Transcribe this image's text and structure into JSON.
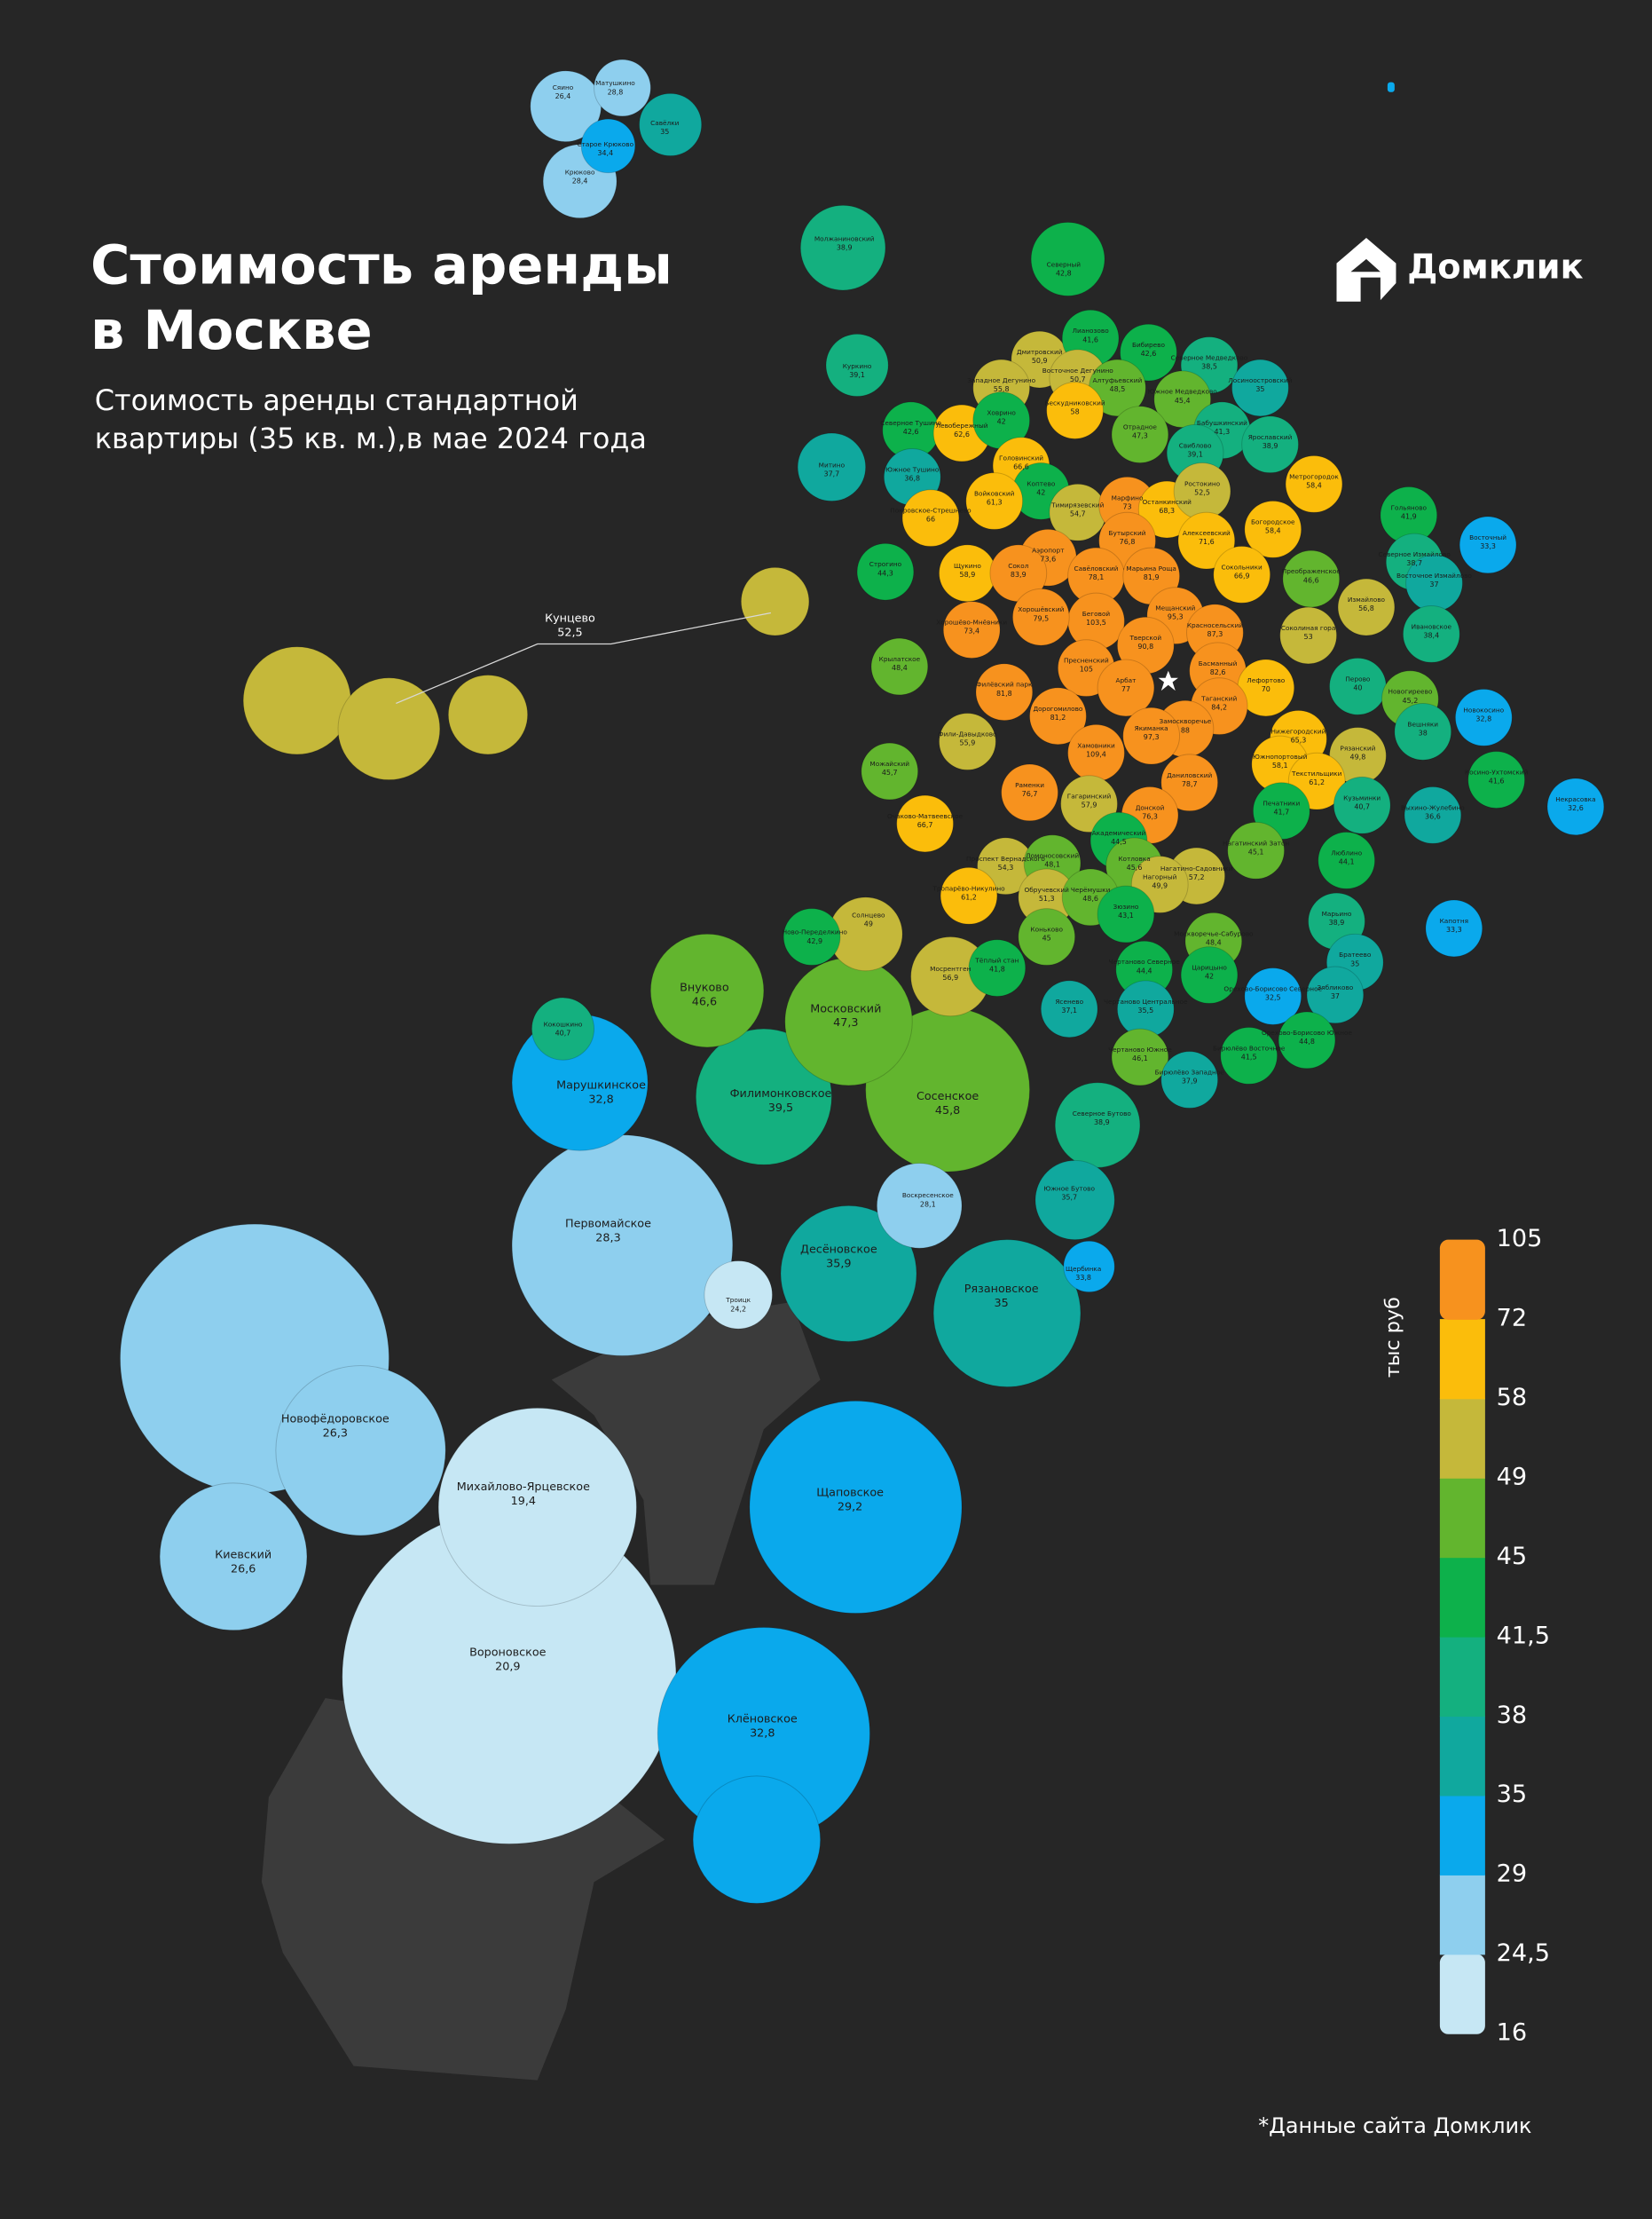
{
  "header": {
    "title_lines": [
      "Стоимость аренды",
      "в Москве"
    ],
    "subtitle_lines": [
      "Стоимость аренды стандартной",
      "квартиры (35 кв. м.),в мае 2024 года"
    ],
    "logo": "Домклик"
  },
  "legend": {
    "title": "тыс руб",
    "breaks": [
      16,
      {
        "value": 24.5,
        "label": "24,5"
      },
      29,
      35,
      38,
      {
        "value": 41.5,
        "label": "41,5"
      },
      45,
      49,
      58,
      72,
      105
    ],
    "colors": [
      "#c6e7f4",
      "#8ecfee",
      "#0aa9ec",
      "#10a89e",
      "#14b07f",
      "#0db14b",
      "#62b52e",
      "#c5b83a",
      "#fbbd0b",
      "#f7921e"
    ]
  },
  "districts": [
    {
      "name": "Сяино",
      "value": 26.4,
      "value_label": "26,4"
    },
    {
      "name": "Матушкино",
      "value": 28.8,
      "value_label": "28,8"
    },
    {
      "name": "Савёлки",
      "value": 35
    },
    {
      "name": "Старое Крюково",
      "value": 34.4,
      "value_label": "34,4"
    },
    {
      "name": "Крюково",
      "value": 28.4,
      "value_label": "28,4"
    },
    {
      "name": "Молжаниновский",
      "value": 38.9,
      "value_label": "38,9"
    },
    {
      "name": "Северный",
      "value": 42.8,
      "value_label": "42,8"
    },
    {
      "name": "Куркино",
      "value": 39.1,
      "value_label": "39,1"
    },
    {
      "name": "Митино",
      "value": 37.7,
      "value_label": "37,7"
    },
    {
      "name": "Кунцево",
      "value": 52.5,
      "value_label": "52,5"
    },
    {
      "name": "Солнцево",
      "value": 49
    },
    {
      "name": "Ново-Переделкино",
      "value": 42.9,
      "value_label": "42,9"
    },
    {
      "name": "Внуково",
      "value": 46.6,
      "value_label": "46,6"
    },
    {
      "name": "Кокошкино",
      "value": 40.7,
      "value_label": "40,7"
    },
    {
      "name": "Московский",
      "value": 47.3,
      "value_label": "47,3"
    },
    {
      "name": "Мосрентген",
      "value": 56.9,
      "value_label": "56,9"
    },
    {
      "name": "Марушкинское",
      "value": 32.8,
      "value_label": "32,8"
    },
    {
      "name": "Филимонковское",
      "value": 39.5,
      "value_label": "39,5"
    },
    {
      "name": "Сосенское",
      "value": 45.8,
      "value_label": "45,8"
    },
    {
      "name": "Северное Бутово",
      "value": 38.9,
      "value_label": "38,9"
    },
    {
      "name": "Южное Бутово",
      "value": 35.7,
      "value_label": "35,7"
    },
    {
      "name": "Воскресенское",
      "value": 28.1,
      "value_label": "28,1"
    },
    {
      "name": "Первомайское",
      "value": 28.3,
      "value_label": "28,3"
    },
    {
      "name": "Десёновское",
      "value": 35.9,
      "value_label": "35,9"
    },
    {
      "name": "Щербинка",
      "value": 33.8,
      "value_label": "33,8"
    },
    {
      "name": "Рязановское",
      "value": 35
    },
    {
      "name": "Троицк",
      "value": 24.2,
      "value_label": "24,2"
    },
    {
      "name": "Новофёдоровское",
      "value": 26.3,
      "value_label": "26,3"
    },
    {
      "name": "Михайлово-Ярцевское",
      "value": 19.4,
      "value_label": "19,4"
    },
    {
      "name": "Щаповское",
      "value": 29.2,
      "value_label": "29,2"
    },
    {
      "name": "Киевский",
      "value": 26.6,
      "value_label": "26,6"
    },
    {
      "name": "Вороновское",
      "value": 20.9,
      "value_label": "20,9"
    },
    {
      "name": "Клёновское",
      "value": 32.8,
      "value_label": "32,8"
    },
    {
      "name": "Дмитровский",
      "value": 50.9,
      "value_label": "50,9"
    },
    {
      "name": "Лианозово",
      "value": 41.6,
      "value_label": "41,6"
    },
    {
      "name": "Бибирево",
      "value": 42.6,
      "value_label": "42,6"
    },
    {
      "name": "Северное Медведково",
      "value": 38.5,
      "value_label": "38,5"
    },
    {
      "name": "Западное Дегунино",
      "value": 55.8,
      "value_label": "55,8"
    },
    {
      "name": "Восточное Дегунино",
      "value": 50.7,
      "value_label": "50,7"
    },
    {
      "name": "Алтуфьевский",
      "value": 48.5,
      "value_label": "48,5"
    },
    {
      "name": "Лосиноостровский",
      "value": 35
    },
    {
      "name": "Южное Медведково",
      "value": 45.4,
      "value_label": "45,4"
    },
    {
      "name": "Северное Тушино",
      "value": 42.6,
      "value_label": "42,6"
    },
    {
      "name": "Левобережный",
      "value": 62.6,
      "value_label": "62,6"
    },
    {
      "name": "Ховрино",
      "value": 42
    },
    {
      "name": "Бескудниковский",
      "value": 58
    },
    {
      "name": "Отрадное",
      "value": 47.3,
      "value_label": "47,3"
    },
    {
      "name": "Бабушкинский",
      "value": 41.3,
      "value_label": "41,3"
    },
    {
      "name": "Ярославский",
      "value": 38.9,
      "value_label": "38,9"
    },
    {
      "name": "Свиблово",
      "value": 39.1,
      "value_label": "39,1"
    },
    {
      "name": "Южное Тушино",
      "value": 36.8,
      "value_label": "36,8"
    },
    {
      "name": "Головинский",
      "value": 66.6,
      "value_label": "66,6"
    },
    {
      "name": "Коптево",
      "value": 42
    },
    {
      "name": "Войковский",
      "value": 61.3,
      "value_label": "61,3"
    },
    {
      "name": "Тимирязевский",
      "value": 54.7,
      "value_label": "54,7"
    },
    {
      "name": "Марфино",
      "value": 73
    },
    {
      "name": "Останкинский",
      "value": 68.3,
      "value_label": "68,3"
    },
    {
      "name": "Ростокино",
      "value": 52.5,
      "value_label": "52,5"
    },
    {
      "name": "Метрогородок",
      "value": 58.4,
      "value_label": "58,4"
    },
    {
      "name": "Гольяново",
      "value": 41.9,
      "value_label": "41,9"
    },
    {
      "name": "Покровское-Стрешнево",
      "value": 66
    },
    {
      "name": "Бутырский",
      "value": 76.8,
      "value_label": "76,8"
    },
    {
      "name": "Алексеевский",
      "value": 71.6,
      "value_label": "71,6"
    },
    {
      "name": "Богородское",
      "value": 58.4,
      "value_label": "58,4"
    },
    {
      "name": "Аэропорт",
      "value": 73.6,
      "value_label": "73,6"
    },
    {
      "name": "Савёловский",
      "value": 78.1,
      "value_label": "78,1"
    },
    {
      "name": "Марьина Роща",
      "value": 81.9,
      "value_label": "81,9"
    },
    {
      "name": "Сокольники",
      "value": 66.9,
      "value_label": "66,9"
    },
    {
      "name": "Преображенское",
      "value": 46.6,
      "value_label": "46,6"
    },
    {
      "name": "Северное Измайлово",
      "value": 38.7,
      "value_label": "38,7"
    },
    {
      "name": "Восточное Измайлово",
      "value": 37
    },
    {
      "name": "Восточный",
      "value": 33.3,
      "value_label": "33,3"
    },
    {
      "name": "Строгино",
      "value": 44.3,
      "value_label": "44,3"
    },
    {
      "name": "Щукино",
      "value": 58.9,
      "value_label": "58,9"
    },
    {
      "name": "Сокол",
      "value": 83.9,
      "value_label": "83,9"
    },
    {
      "name": "Беговой",
      "value": 103.5,
      "value_label": "103,5"
    },
    {
      "name": "Хорошёвский",
      "value": 79.5,
      "value_label": "79,5"
    },
    {
      "name": "Мещанский",
      "value": 95.3,
      "value_label": "95,3"
    },
    {
      "name": "Измайлово",
      "value": 56.8,
      "value_label": "56,8"
    },
    {
      "name": "Красносельский",
      "value": 87.3,
      "value_label": "87,3"
    },
    {
      "name": "Хорошёво-Мнёвники",
      "value": 73.4,
      "value_label": "73,4"
    },
    {
      "name": "Ивановское",
      "value": 38.4,
      "value_label": "38,4"
    },
    {
      "name": "Соколиная гора",
      "value": 53
    },
    {
      "name": "Крылатское",
      "value": 48.4,
      "value_label": "48,4"
    },
    {
      "name": "Пресненский",
      "value": 105
    },
    {
      "name": "Тверской",
      "value": 90.8,
      "value_label": "90,8"
    },
    {
      "name": "Басманный",
      "value": 82.6,
      "value_label": "82,6"
    },
    {
      "name": "Перово",
      "value": 40
    },
    {
      "name": "Арбат",
      "value": 77
    },
    {
      "name": "Филёвский парк",
      "value": 81.8,
      "value_label": "81,8"
    },
    {
      "name": "Лефортово",
      "value": 70
    },
    {
      "name": "Таганский",
      "value": 84.2,
      "value_label": "84,2"
    },
    {
      "name": "Новогиреево",
      "value": 45.2,
      "value_label": "45,2"
    },
    {
      "name": "Новокосино",
      "value": 32.8,
      "value_label": "32,8"
    },
    {
      "name": "Дорогомилово",
      "value": 81.2,
      "value_label": "81,2"
    },
    {
      "name": "Замоскворечье",
      "value": 88
    },
    {
      "name": "Вешняки",
      "value": 38
    },
    {
      "name": "Якиманка",
      "value": 97.3,
      "value_label": "97,3"
    },
    {
      "name": "Нижегородский",
      "value": 65.3,
      "value_label": "65,3"
    },
    {
      "name": "Фили-Давыдково",
      "value": 55.9,
      "value_label": "55,9"
    },
    {
      "name": "Можайский",
      "value": 45.7,
      "value_label": "45,7"
    },
    {
      "name": "Хамовники",
      "value": 109.4,
      "value_label": "109,4"
    },
    {
      "name": "Рязанский",
      "value": 49.8,
      "value_label": "49,8"
    },
    {
      "name": "Южнопортовый",
      "value": 58.1,
      "value_label": "58,1"
    },
    {
      "name": "Текстильщики",
      "value": 61.2,
      "value_label": "61,2"
    },
    {
      "name": "Косино-Ухтомский",
      "value": 41.6,
      "value_label": "41,6"
    },
    {
      "name": "Даниловский",
      "value": 78.7,
      "value_label": "78,7"
    },
    {
      "name": "Раменки",
      "value": 76.7,
      "value_label": "76,7"
    },
    {
      "name": "Кузьминки",
      "value": 40.7,
      "value_label": "40,7"
    },
    {
      "name": "Печатники",
      "value": 41.7,
      "value_label": "41,7"
    },
    {
      "name": "Выхино-Жулебино",
      "value": 36.6,
      "value_label": "36,6"
    },
    {
      "name": "Некрасовка",
      "value": 32.6,
      "value_label": "32,6"
    },
    {
      "name": "Гагаринский",
      "value": 57.9,
      "value_label": "57,9"
    },
    {
      "name": "Донской",
      "value": 76.3,
      "value_label": "76,3"
    },
    {
      "name": "Очаково-Матвеевское",
      "value": 66.7,
      "value_label": "66,7"
    },
    {
      "name": "Академический",
      "value": 44.5,
      "value_label": "44,5"
    },
    {
      "name": "Нагатинский Затон",
      "value": 45.1,
      "value_label": "45,1"
    },
    {
      "name": "Люблино",
      "value": 44.1,
      "value_label": "44,1"
    },
    {
      "name": "Проспект Вернадского",
      "value": 54.3,
      "value_label": "54,3"
    },
    {
      "name": "Ломоносовский",
      "value": 48.1,
      "value_label": "48,1"
    },
    {
      "name": "Котловка",
      "value": 45.6,
      "value_label": "45,6"
    },
    {
      "name": "Нагатино-Садовники",
      "value": 57.2,
      "value_label": "57,2"
    },
    {
      "name": "Тропарёво-Никулино",
      "value": 61.2,
      "value_label": "61,2"
    },
    {
      "name": "Обручевский",
      "value": 51.3,
      "value_label": "51,3"
    },
    {
      "name": "Черёмушки",
      "value": 48.6,
      "value_label": "48,6"
    },
    {
      "name": "Нагорный",
      "value": 49.9,
      "value_label": "49,9"
    },
    {
      "name": "Зюзино",
      "value": 43.1,
      "value_label": "43,1"
    },
    {
      "name": "Марьино",
      "value": 38.9,
      "value_label": "38,9"
    },
    {
      "name": "Капотня",
      "value": 33.3,
      "value_label": "33,3"
    },
    {
      "name": "Коньково",
      "value": 45
    },
    {
      "name": "Москворечье-Сабурово",
      "value": 48.4,
      "value_label": "48,4"
    },
    {
      "name": "Братеево",
      "value": 35
    },
    {
      "name": "Тёплый стан",
      "value": 41.8,
      "value_label": "41,8"
    },
    {
      "name": "Чертаново Северное",
      "value": 44.4,
      "value_label": "44,4"
    },
    {
      "name": "Царицыно",
      "value": 42
    },
    {
      "name": "Орехово-Борисово Северное",
      "value": 32.5,
      "value_label": "32,5"
    },
    {
      "name": "Зябликово",
      "value": 37
    },
    {
      "name": "Ясенево",
      "value": 37.1,
      "value_label": "37,1"
    },
    {
      "name": "Чертаново Центральное",
      "value": 35.5,
      "value_label": "35,5"
    },
    {
      "name": "Орехово-Борисово Южное",
      "value": 44.8,
      "value_label": "44,8"
    },
    {
      "name": "Чертаново Южное",
      "value": 46.1,
      "value_label": "46,1"
    },
    {
      "name": "Бирюлёво Восточное",
      "value": 41.5,
      "value_label": "41,5"
    },
    {
      "name": "Бирюлёво Западное",
      "value": 37.9,
      "value_label": "37,9"
    }
  ],
  "footnote": "*Данные сайта Домклик"
}
